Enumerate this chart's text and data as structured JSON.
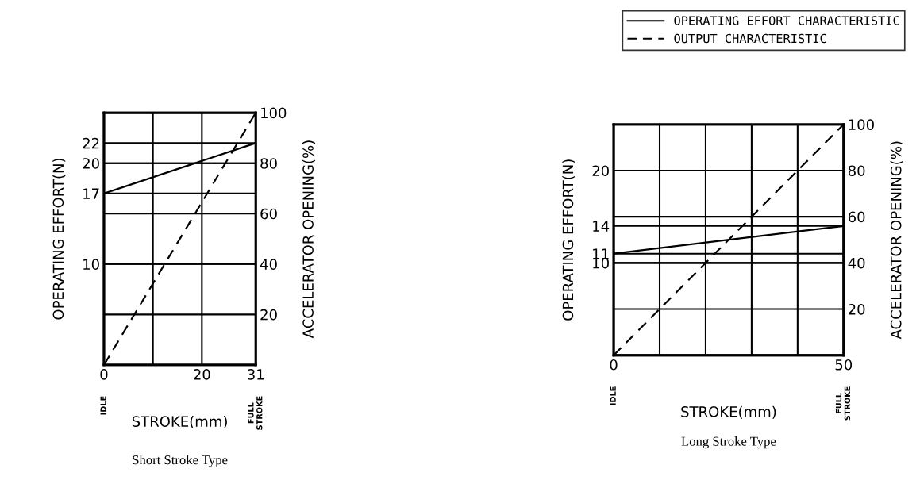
{
  "chart_data": [
    {
      "type": "line",
      "title": "Short Stroke Type",
      "xlabel": "STROKE(mm)",
      "ylabel": "OPERATING EFFORT(N)",
      "y2label": "ACCELERATOR OPENING(%)",
      "annotations": [
        "IDLE",
        "FULL STROKE"
      ],
      "x": [
        0,
        31
      ],
      "xlim": [
        0,
        31
      ],
      "xticks": [
        0,
        {
          "value": 10,
          "label": null
        },
        20,
        31
      ],
      "ylim": [
        0,
        25
      ],
      "yticks": [
        10,
        17,
        20,
        22
      ],
      "y2lim": [
        0,
        100
      ],
      "y2ticks": [
        20,
        40,
        60,
        80,
        100
      ],
      "grid": true,
      "line_style": "solid",
      "series": [
        {
          "color": "#000000",
          "values": [
            17,
            22
          ]
        },
        {
          "color": "#000000",
          "values": [
            0,
            100
          ],
          "axis": "y2",
          "line_style": "dashed"
        }
      ]
    },
    {
      "type": "line",
      "title": "Long Stroke Type",
      "xlabel": "STROKE(mm)",
      "ylabel": "OPERATING EFFORT(N)",
      "y2label": "ACCELERATOR OPENING(%)",
      "annotations": [
        "IDLE",
        "FULL STROKE"
      ],
      "x": [
        0,
        50
      ],
      "xlim": [
        0,
        50
      ],
      "xticks": [
        0,
        {
          "value": 10,
          "label": null
        },
        {
          "value": 20,
          "label": null
        },
        {
          "value": 30,
          "label": null
        },
        {
          "value": 40,
          "label": null
        },
        50
      ],
      "ylim": [
        0,
        25
      ],
      "yticks": [
        10,
        11,
        14,
        20
      ],
      "y2lim": [
        0,
        100
      ],
      "y2ticks": [
        20,
        40,
        60,
        80,
        100
      ],
      "grid": true,
      "line_style": "solid",
      "legend": "top right",
      "series": [
        {
          "name": "OPERATING EFFORT CHARACTERISTIC",
          "color": "#000000",
          "values": [
            11,
            14
          ]
        },
        {
          "name": "OUTPUT CHARACTERISTIC",
          "color": "#000000",
          "values": [
            0,
            100
          ],
          "axis": "y2",
          "line_style": "dashed"
        }
      ]
    }
  ]
}
